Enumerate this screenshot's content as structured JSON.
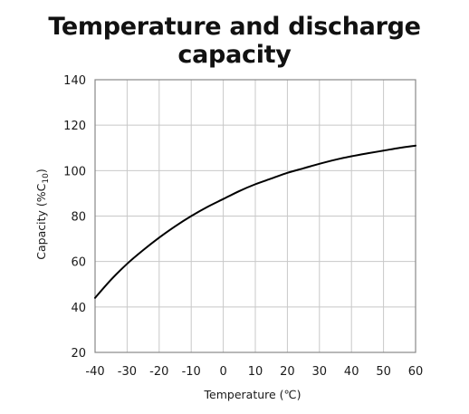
{
  "chart_data": {
    "type": "line",
    "title": "Temperature and discharge capacity",
    "xlabel": "Temperature (℃)",
    "ylabel": "Capacity (%C10)",
    "ylabel_parts": {
      "main": "Capacity (%C",
      "sub": "10",
      "tail": ")"
    },
    "xlim": [
      -40,
      60
    ],
    "ylim": [
      20,
      140
    ],
    "xticks": [
      -40,
      -30,
      -20,
      -10,
      0,
      10,
      20,
      30,
      40,
      50,
      60
    ],
    "yticks": [
      20,
      40,
      60,
      80,
      100,
      120,
      140
    ],
    "xtick_labels": [
      "-40",
      "-30",
      "-20",
      "-10",
      "0",
      "10",
      "20",
      "30",
      "40",
      "50",
      "60"
    ],
    "ytick_labels": [
      "20",
      "40",
      "60",
      "80",
      "100",
      "120",
      "140"
    ],
    "grid": true,
    "series": [
      {
        "x": [
          -40,
          -35,
          -30,
          -25,
          -20,
          -15,
          -10,
          -5,
          0,
          5,
          10,
          15,
          20,
          25,
          30,
          35,
          40,
          45,
          50,
          55,
          60
        ],
        "values": [
          44,
          52,
          59,
          65,
          70.5,
          75.5,
          80,
          84,
          87.5,
          91,
          94,
          96.5,
          99,
          101,
          103,
          104.8,
          106.3,
          107.6,
          108.8,
          110,
          111
        ]
      }
    ],
    "colors": {
      "line": "#000000",
      "grid": "#c8c8c8",
      "frame": "#888888"
    }
  }
}
